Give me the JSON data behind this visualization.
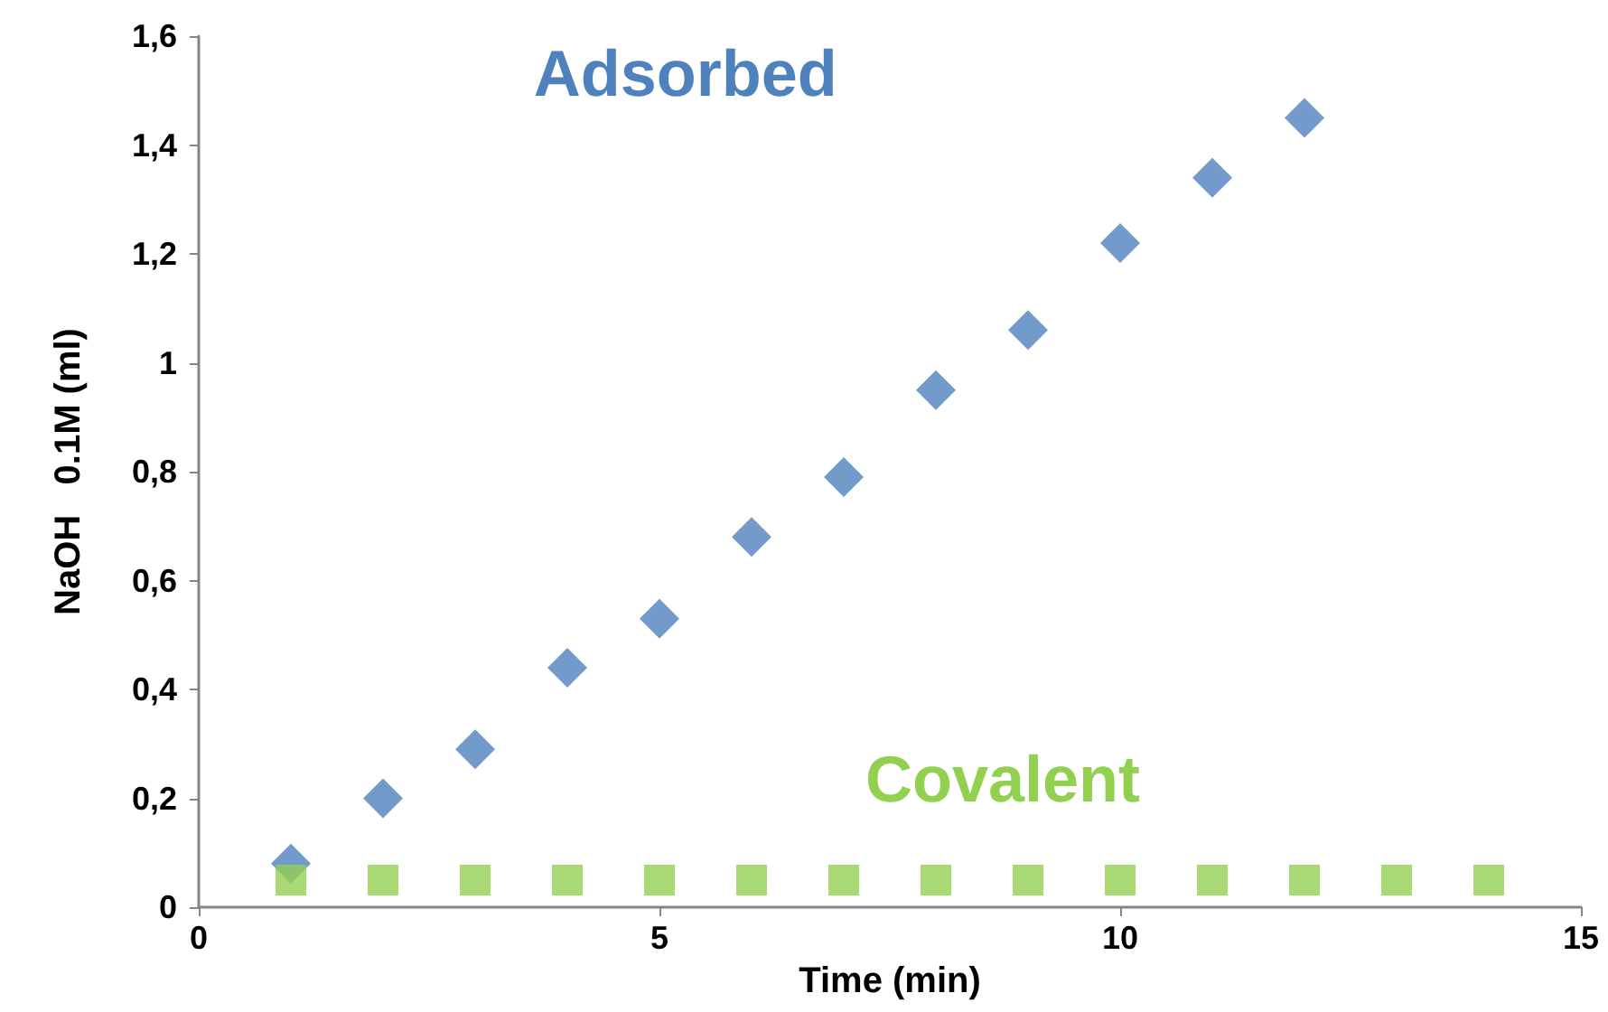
{
  "chart_data": {
    "type": "scatter",
    "xlabel": "Time (min)",
    "ylabel": "NaOH   0.1M (ml)",
    "xlim": [
      0,
      15
    ],
    "xticks": [
      0,
      5,
      10,
      15
    ],
    "ylim": [
      0,
      1.6
    ],
    "yticks": [
      0,
      {
        "value": 0.2,
        "label": "0,2"
      },
      {
        "value": 0.4,
        "label": "0,4"
      },
      {
        "value": 0.6,
        "label": "0,6"
      },
      {
        "value": 0.8,
        "label": "0,8"
      },
      1,
      {
        "value": 1.2,
        "label": "1,2"
      },
      {
        "value": 1.4,
        "label": "1,4"
      },
      {
        "value": 1.6,
        "label": "1,6"
      }
    ],
    "grid": false,
    "series": [
      {
        "name": "Adsorbed",
        "color": "#4f81bd",
        "marker": "diamond",
        "x": [
          1,
          2,
          3,
          4,
          5,
          6,
          7,
          8,
          9,
          10,
          11,
          12
        ],
        "values": [
          0.08,
          0.2,
          0.29,
          0.44,
          0.53,
          0.68,
          0.79,
          0.95,
          1.06,
          1.22,
          1.34,
          1.45
        ]
      },
      {
        "name": "Covalent",
        "color": "#92d050",
        "marker": "square",
        "x": [
          1,
          2,
          3,
          4,
          5,
          6,
          7,
          8,
          9,
          10,
          11,
          12,
          13,
          14
        ],
        "values": [
          0.05,
          0.05,
          0.05,
          0.05,
          0.05,
          0.05,
          0.05,
          0.05,
          0.05,
          0.05,
          0.05,
          0.05,
          0.05,
          0.05
        ]
      }
    ]
  }
}
